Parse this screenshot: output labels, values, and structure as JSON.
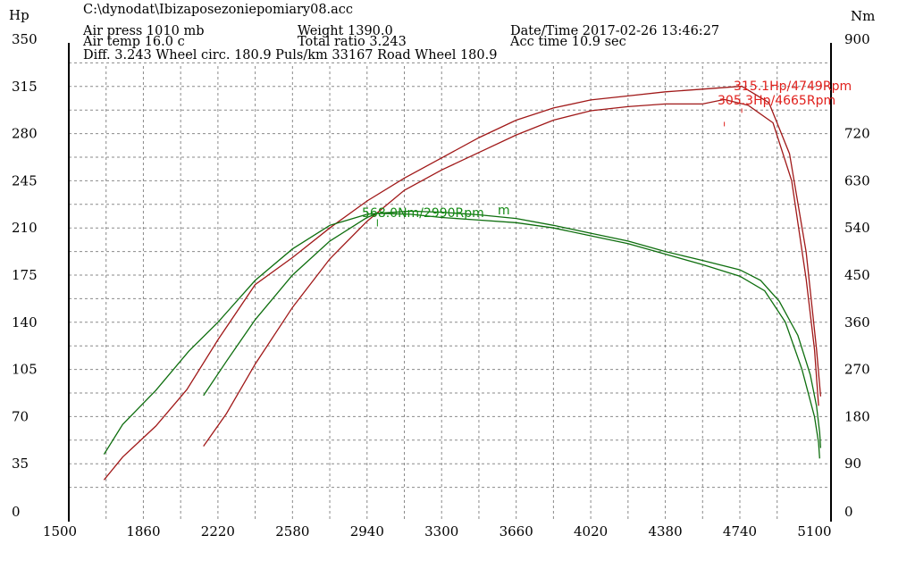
{
  "header": {
    "file": "C:\\dynodat\\Ibizaposezoniepomiary08.acc",
    "air_press": "Air press  1010 mb",
    "air_temp": "Air temp  16.0 c",
    "weight": "Weight  1390.0",
    "total_ratio": "Total ratio 3.243",
    "date_time": "Date/Time  2017-02-26 13:46:27",
    "acc_time": "Acc time  10.9 sec",
    "diff": "Diff.    3.243  Wheel circ. 180.9  Puls/km  33167  Road Wheel 180.9"
  },
  "chart_data": {
    "type": "line",
    "xlabel": "",
    "ylabel_left": "Hp",
    "ylabel_right": "Nm",
    "xlim": [
      1500,
      5180
    ],
    "ylim_left": [
      0,
      350
    ],
    "ylim_right": [
      0,
      900
    ],
    "xticks": [
      "1500",
      "1860",
      "2220",
      "2580",
      "2940",
      "3300",
      "3660",
      "4020",
      "4380",
      "4740",
      "5100"
    ],
    "yticks_left": [
      "0",
      "35",
      "70",
      "105",
      "140",
      "175",
      "210",
      "245",
      "280",
      "315",
      "350"
    ],
    "yticks_right": [
      "0",
      "90",
      "180",
      "270",
      "360",
      "450",
      "540",
      "630",
      "720",
      "900"
    ],
    "grid": true,
    "colors": {
      "power": "#a01818",
      "torque": "#0e6e0e",
      "label_red": "#e0201c",
      "label_green": "#138a13"
    },
    "annotations": [
      "315.1Hp/4749Rpm",
      "305.3Hp/4665Rpm",
      "568.0Nm/2990Rpm",
      "m"
    ],
    "series": [
      {
        "axis": "left",
        "color": "#a01818",
        "points": [
          [
            1670,
            23
          ],
          [
            1760,
            40
          ],
          [
            1920,
            63
          ],
          [
            2070,
            90
          ],
          [
            2220,
            127
          ],
          [
            2400,
            168
          ],
          [
            2580,
            188
          ],
          [
            2760,
            210
          ],
          [
            2940,
            230
          ],
          [
            3120,
            247
          ],
          [
            3300,
            262
          ],
          [
            3480,
            277
          ],
          [
            3660,
            290
          ],
          [
            3840,
            299
          ],
          [
            4020,
            305
          ],
          [
            4200,
            308
          ],
          [
            4380,
            311
          ],
          [
            4560,
            313
          ],
          [
            4749,
            315.1
          ],
          [
            4880,
            303
          ],
          [
            4980,
            265
          ],
          [
            5060,
            192
          ],
          [
            5110,
            120
          ],
          [
            5130,
            85
          ]
        ]
      },
      {
        "axis": "left",
        "color": "#a01818",
        "points": [
          [
            2150,
            48
          ],
          [
            2260,
            72
          ],
          [
            2400,
            109
          ],
          [
            2580,
            151
          ],
          [
            2760,
            187
          ],
          [
            2940,
            215
          ],
          [
            3120,
            238
          ],
          [
            3300,
            253
          ],
          [
            3480,
            266
          ],
          [
            3660,
            279
          ],
          [
            3840,
            290
          ],
          [
            4020,
            297
          ],
          [
            4200,
            300
          ],
          [
            4380,
            302
          ],
          [
            4560,
            302
          ],
          [
            4665,
            305.3
          ],
          [
            4780,
            301
          ],
          [
            4900,
            288
          ],
          [
            4990,
            245
          ],
          [
            5060,
            172
          ],
          [
            5100,
            120
          ],
          [
            5120,
            78
          ]
        ]
      },
      {
        "axis": "right",
        "color": "#0e6e0e",
        "points": [
          [
            1670,
            108
          ],
          [
            1760,
            165
          ],
          [
            1920,
            230
          ],
          [
            2080,
            305
          ],
          [
            2220,
            360
          ],
          [
            2400,
            440
          ],
          [
            2580,
            500
          ],
          [
            2760,
            545
          ],
          [
            2940,
            566
          ],
          [
            2990,
            568
          ],
          [
            3150,
            566
          ],
          [
            3300,
            560
          ],
          [
            3480,
            555
          ],
          [
            3660,
            550
          ],
          [
            3840,
            540
          ],
          [
            4020,
            525
          ],
          [
            4200,
            510
          ],
          [
            4380,
            490
          ],
          [
            4560,
            470
          ],
          [
            4740,
            448
          ],
          [
            4860,
            420
          ],
          [
            4960,
            360
          ],
          [
            5040,
            270
          ],
          [
            5100,
            180
          ],
          [
            5120,
            130
          ],
          [
            5125,
            100
          ]
        ]
      },
      {
        "axis": "right",
        "color": "#0e6e0e",
        "points": [
          [
            2150,
            220
          ],
          [
            2260,
            285
          ],
          [
            2400,
            365
          ],
          [
            2580,
            450
          ],
          [
            2760,
            515
          ],
          [
            2940,
            560
          ],
          [
            2990,
            568
          ],
          [
            3150,
            572
          ],
          [
            3300,
            570
          ],
          [
            3480,
            565
          ],
          [
            3660,
            558
          ],
          [
            3840,
            545
          ],
          [
            4020,
            530
          ],
          [
            4200,
            515
          ],
          [
            4380,
            495
          ],
          [
            4560,
            478
          ],
          [
            4740,
            460
          ],
          [
            4840,
            440
          ],
          [
            4930,
            400
          ],
          [
            5020,
            335
          ],
          [
            5080,
            260
          ],
          [
            5110,
            200
          ],
          [
            5125,
            150
          ],
          [
            5130,
            120
          ]
        ]
      }
    ]
  }
}
